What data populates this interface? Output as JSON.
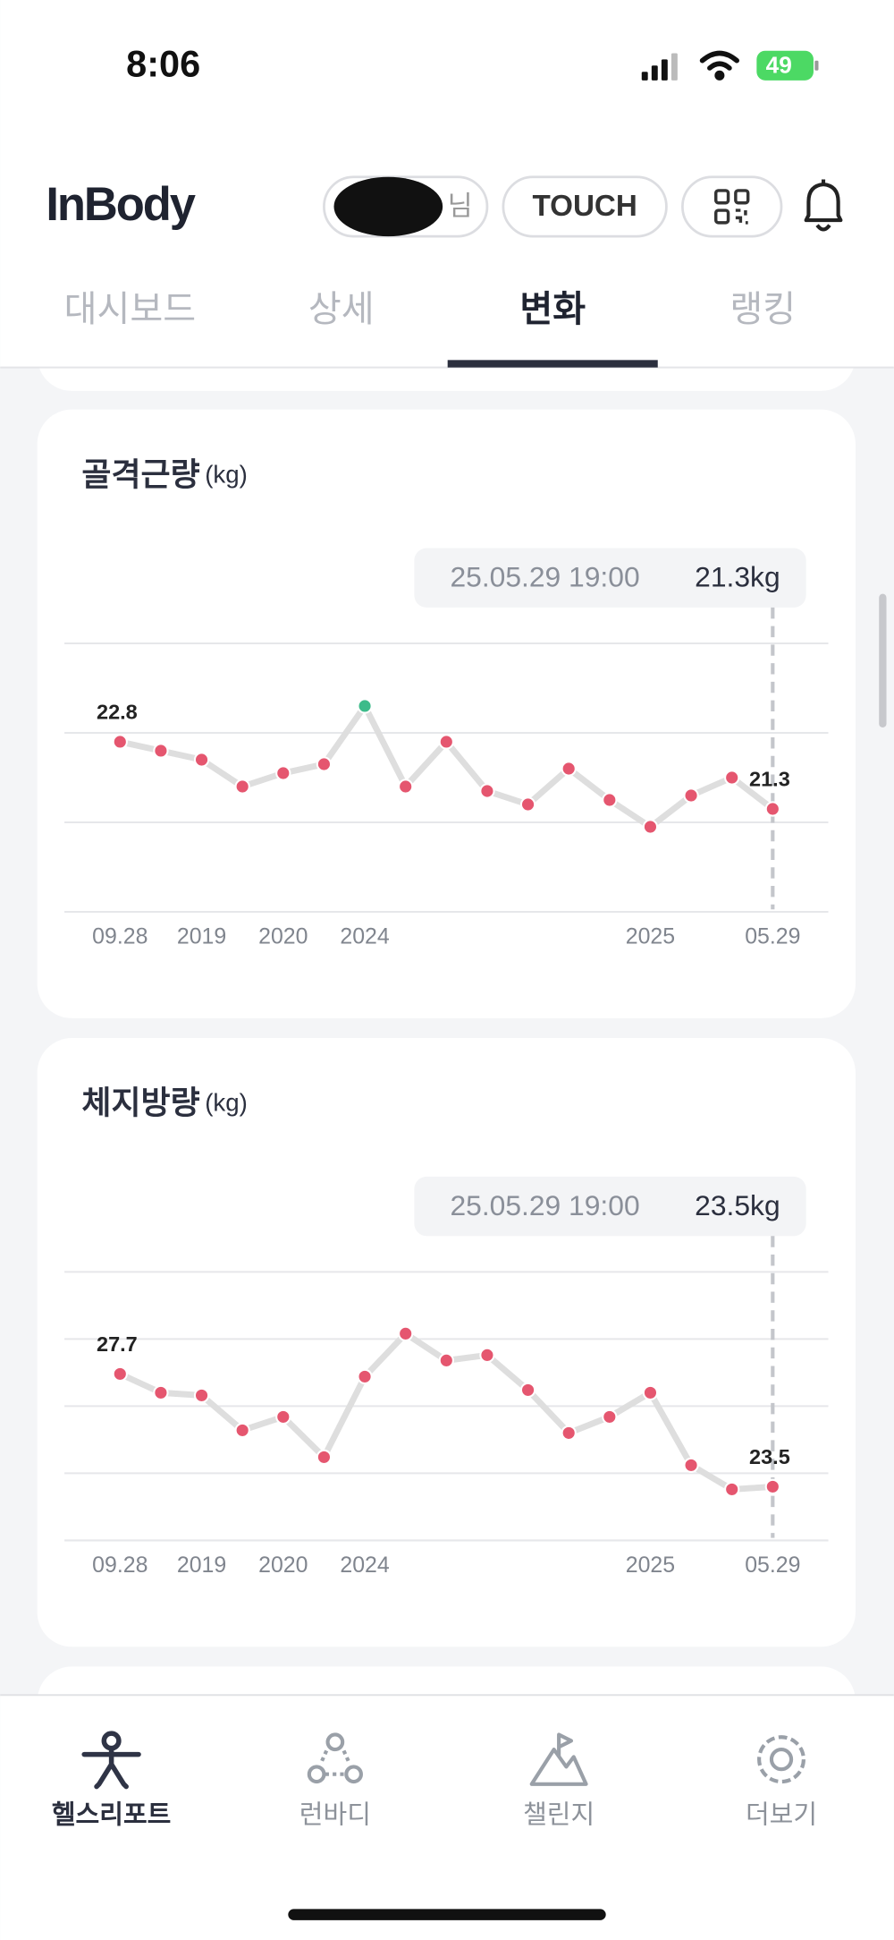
{
  "status_bar": {
    "time": "8:06",
    "battery": "49"
  },
  "header": {
    "logo": "InBody",
    "user_suffix": "님",
    "touch_button": "TOUCH"
  },
  "tabs": [
    "대시보드",
    "상세",
    "변화",
    "랭킹"
  ],
  "active_tab": 2,
  "chart_data": [
    {
      "type": "line",
      "title": "골격근량",
      "unit": "(kg)",
      "tooltip": {
        "date": "25.05.29 19:00",
        "value": "21.3kg"
      },
      "categories": [
        "09.28",
        null,
        "2019",
        null,
        "2020",
        null,
        "2024",
        null,
        null,
        null,
        null,
        null,
        null,
        "2025",
        null,
        null,
        "05.29"
      ],
      "values": [
        22.8,
        22.6,
        22.4,
        21.8,
        22.1,
        22.3,
        23.6,
        21.8,
        22.8,
        21.7,
        21.4,
        22.2,
        21.5,
        20.9,
        21.6,
        22.0,
        21.3
      ],
      "color": "#e5566f",
      "line_color": "#dedede",
      "highlight": {
        "index": 6,
        "color": "#3dbb8a"
      },
      "labeled_points": "ends",
      "ylim": [
        19,
        25
      ],
      "yticks": [
        19,
        21,
        23,
        25
      ],
      "grid": true
    },
    {
      "type": "line",
      "title": "체지방량",
      "unit": "(kg)",
      "tooltip": {
        "date": "25.05.29 19:00",
        "value": "23.5kg"
      },
      "categories": [
        "09.28",
        null,
        "2019",
        null,
        "2020",
        null,
        "2024",
        null,
        null,
        null,
        null,
        null,
        null,
        "2025",
        null,
        null,
        "05.29"
      ],
      "values": [
        27.7,
        27.0,
        26.9,
        25.6,
        26.1,
        24.6,
        27.6,
        29.2,
        28.2,
        28.4,
        27.1,
        25.5,
        26.1,
        27.0,
        24.3,
        23.4,
        23.5
      ],
      "color": "#e5566f",
      "line_color": "#dedede",
      "labeled_points": "ends",
      "ylim": [
        21.5,
        31.5
      ],
      "yticks": [
        21.5,
        24,
        26.5,
        29,
        31.5
      ],
      "grid": true
    }
  ],
  "bottom_nav": [
    "헬스리포트",
    "런바디",
    "챌린지",
    "더보기"
  ],
  "active_nav": 0
}
